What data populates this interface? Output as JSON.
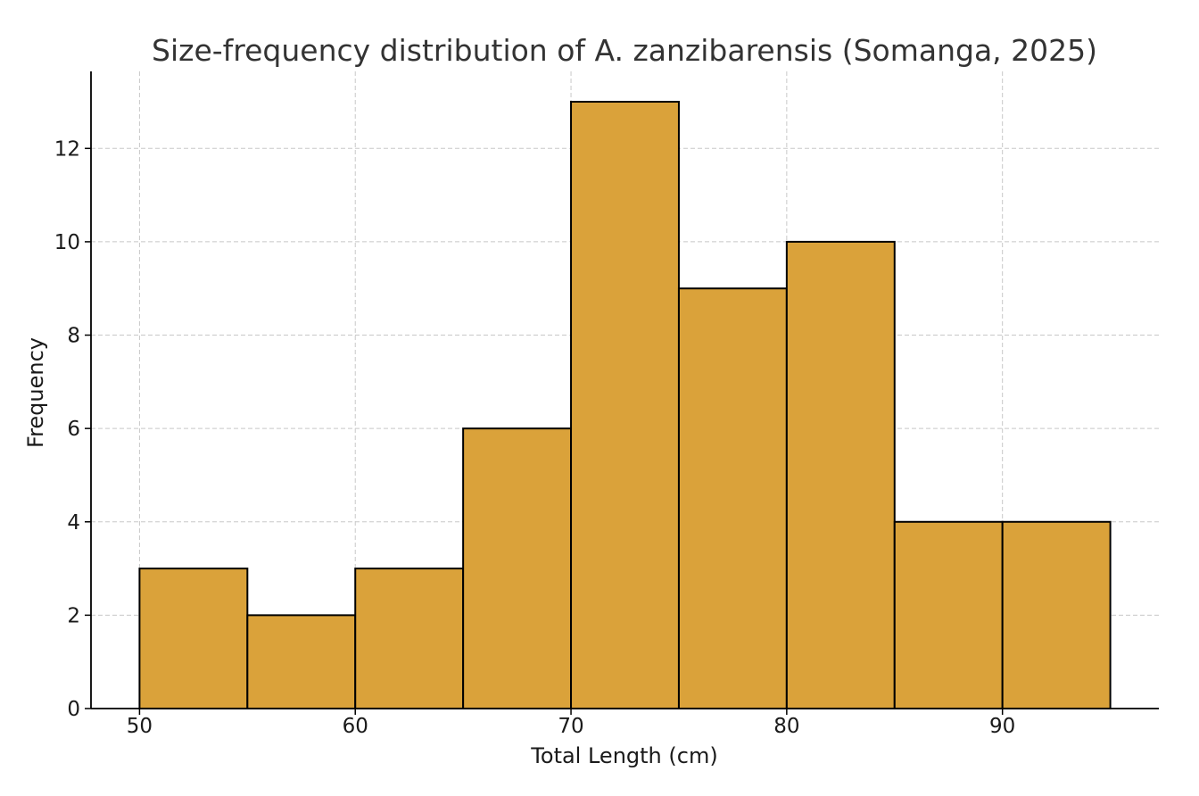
{
  "chart_data": {
    "type": "bar",
    "subtype": "histogram",
    "title": "Size-frequency distribution of A. zanzibarensis (Somanga, 2025)",
    "xlabel": "Total Length (cm)",
    "ylabel": "Frequency",
    "bins": [
      {
        "start": 50,
        "end": 55,
        "count": 3
      },
      {
        "start": 55,
        "end": 60,
        "count": 2
      },
      {
        "start": 60,
        "end": 65,
        "count": 3
      },
      {
        "start": 65,
        "end": 70,
        "count": 6
      },
      {
        "start": 70,
        "end": 75,
        "count": 13
      },
      {
        "start": 75,
        "end": 80,
        "count": 9
      },
      {
        "start": 80,
        "end": 85,
        "count": 10
      },
      {
        "start": 85,
        "end": 90,
        "count": 4
      },
      {
        "start": 90,
        "end": 95,
        "count": 4
      }
    ],
    "xlim": [
      47.75,
      97.25
    ],
    "ylim": [
      0,
      13.65
    ],
    "xticks": [
      50,
      60,
      70,
      80,
      90
    ],
    "yticks": [
      0,
      2,
      4,
      6,
      8,
      10,
      12
    ],
    "grid": true,
    "legend": "none",
    "colors": {
      "bar_fill": "#DAA23A",
      "bar_edge": "#000000",
      "grid": "#c8c8c8"
    }
  }
}
